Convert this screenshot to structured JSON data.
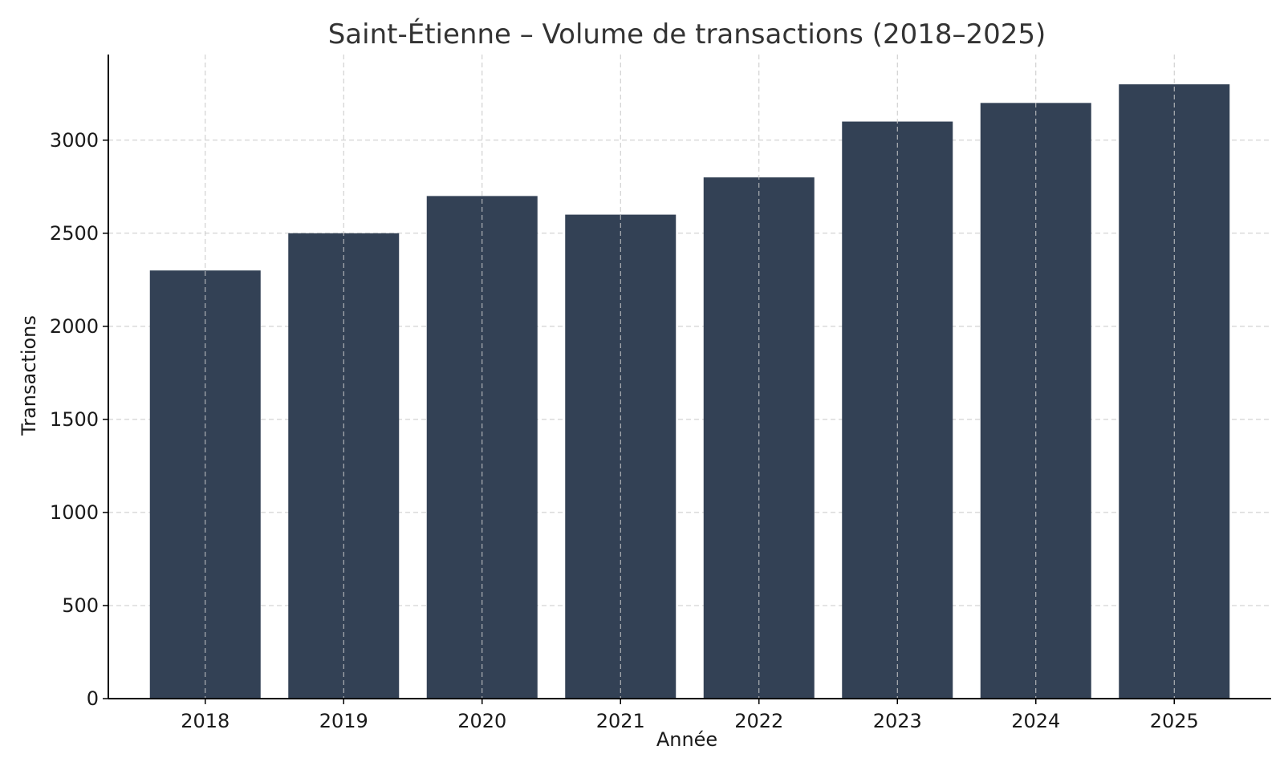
{
  "chart_data": {
    "type": "bar",
    "title": "Saint-Étienne – Volume de transactions (2018–2025)",
    "xlabel": "Année",
    "ylabel": "Transactions",
    "categories": [
      "2018",
      "2019",
      "2020",
      "2021",
      "2022",
      "2023",
      "2024",
      "2025"
    ],
    "values": [
      2300,
      2500,
      2700,
      2600,
      2800,
      3100,
      3200,
      3300
    ],
    "ylim": [
      0,
      3460
    ],
    "yticks": [
      0,
      500,
      1000,
      1500,
      2000,
      2500,
      3000
    ],
    "ytick_labels": [
      "0",
      "500",
      "1000",
      "1500",
      "2000",
      "2500",
      "3000"
    ],
    "grid": true,
    "bar_color": "#334155",
    "grid_color": "#c8c8c8"
  }
}
